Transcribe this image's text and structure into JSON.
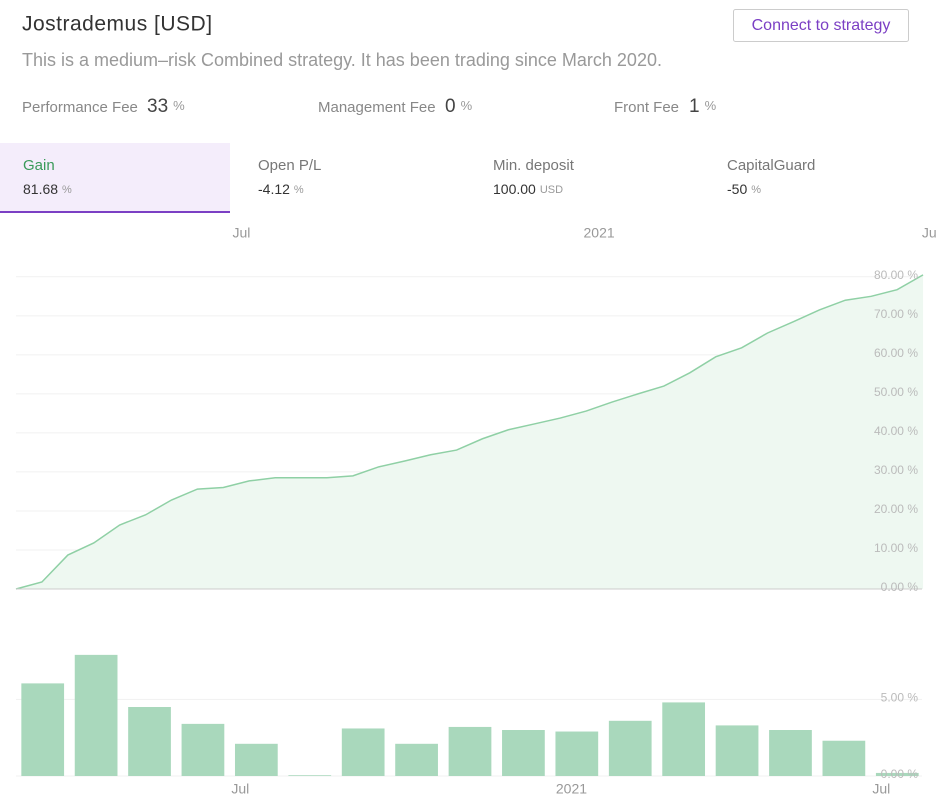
{
  "header": {
    "title": "Jostrademus [USD]",
    "button": "Connect to strategy",
    "description": "This is a medium–risk Combined strategy. It has been trading since March 2020."
  },
  "fees": [
    {
      "label": "Performance Fee",
      "value": "33",
      "unit": "%"
    },
    {
      "label": "Management Fee",
      "value": "0",
      "unit": "%"
    },
    {
      "label": "Front Fee",
      "value": "1",
      "unit": "%"
    }
  ],
  "stats": [
    {
      "label": "Gain",
      "value": "81.68",
      "unit": "%"
    },
    {
      "label": "Open P/L",
      "value": "-4.12",
      "unit": "%"
    },
    {
      "label": "Min. deposit",
      "value": "100.00",
      "unit": "USD"
    },
    {
      "label": "CapitalGuard",
      "value": "-50",
      "unit": "%"
    }
  ],
  "chart_data": [
    {
      "type": "line",
      "color": "#8fd0a5",
      "fill": "#eef8f1",
      "values": [
        0,
        1.8,
        8.7,
        11.8,
        16.4,
        19,
        22.8,
        25.6,
        26,
        27.7,
        28.5,
        28.5,
        28.5,
        29,
        31.3,
        32.8,
        34.4,
        35.6,
        38.5,
        40.8,
        42.3,
        43.8,
        45.6,
        47.9,
        50,
        52,
        55.4,
        59.5,
        61.8,
        65.6,
        68.5,
        71.5,
        74,
        75,
        76.7,
        80.5
      ],
      "xlim": [
        0,
        35.5
      ],
      "xticks": [
        {
          "value": 8.7,
          "label": "Jul"
        },
        {
          "value": 22.5,
          "label": "2021"
        },
        {
          "value": 35.3,
          "label": "Jul"
        }
      ],
      "ylim": [
        0,
        82
      ],
      "yticks": [
        {
          "value": 0,
          "label": "0.00 %"
        },
        {
          "value": 10,
          "label": "10.00 %"
        },
        {
          "value": 20,
          "label": "20.00 %"
        },
        {
          "value": 30,
          "label": "30.00 %"
        },
        {
          "value": 40,
          "label": "40.00 %"
        },
        {
          "value": 50,
          "label": "50.00 %"
        },
        {
          "value": 60,
          "label": "60.00 %"
        },
        {
          "value": 70,
          "label": "70.00 %"
        },
        {
          "value": 80,
          "label": "80.00 %"
        }
      ],
      "grid": true
    },
    {
      "type": "bar",
      "color": "#a9d8bc",
      "values": [
        6.04,
        7.9,
        4.5,
        3.4,
        2.1,
        0.05,
        3.1,
        2.1,
        3.2,
        3.0,
        2.9,
        3.6,
        4.8,
        3.3,
        3.0,
        2.3,
        0.2
      ],
      "xlim": [
        -0.5,
        16.5
      ],
      "xticks": [
        {
          "value": 3.7,
          "label": "Jul"
        },
        {
          "value": 9.9,
          "label": "2021"
        },
        {
          "value": 15.7,
          "label": "Jul"
        }
      ],
      "ylim": [
        0,
        9
      ],
      "yticks": [
        {
          "value": 0,
          "label": "0.00 %"
        },
        {
          "value": 5,
          "label": "5.00 %"
        }
      ],
      "grid": true
    }
  ]
}
